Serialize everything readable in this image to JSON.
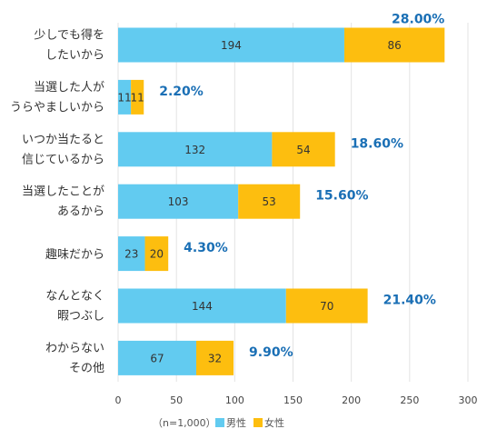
{
  "chart_data": {
    "type": "bar",
    "orientation": "horizontal",
    "stacked": true,
    "categories": [
      [
        "少しでも得を",
        "したいから"
      ],
      [
        "当選した人が",
        "うらやましいから"
      ],
      [
        "いつか当たると",
        "信じているから"
      ],
      [
        "当選したことが",
        "あるから"
      ],
      [
        "趣味だから"
      ],
      [
        "なんとなく",
        "暇つぶし"
      ],
      [
        "わからない",
        "その他"
      ]
    ],
    "series": [
      {
        "name": "男性",
        "values": [
          194,
          11,
          132,
          103,
          23,
          144,
          67
        ],
        "color": "#62cbf0"
      },
      {
        "name": "女性",
        "values": [
          86,
          11,
          54,
          53,
          20,
          70,
          32
        ],
        "color": "#fdbe0f"
      }
    ],
    "percent_labels": [
      "28.00%",
      "2.20%",
      "18.60%",
      "15.60%",
      "4.30%",
      "21.40%",
      "9.90%"
    ],
    "xlim": [
      0,
      300
    ],
    "xticks": [
      0,
      50,
      100,
      150,
      200,
      250,
      300
    ],
    "grid": true,
    "note": "（n=1,000）",
    "legend_position": "bottom"
  }
}
